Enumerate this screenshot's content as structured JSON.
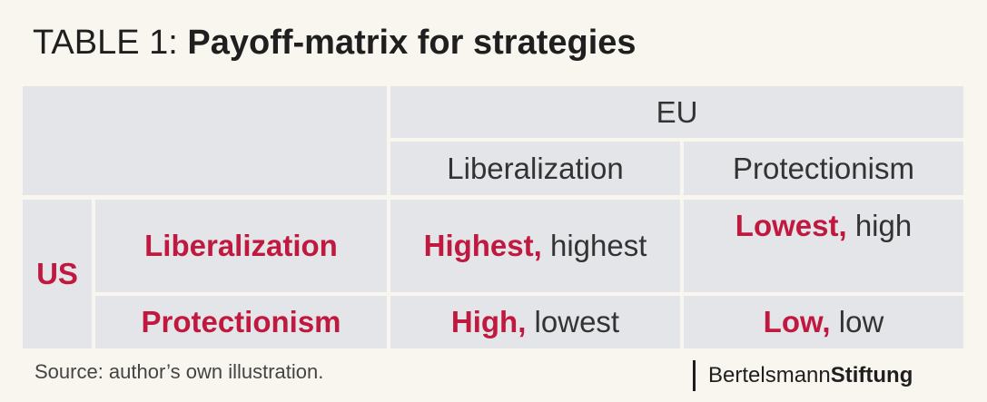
{
  "title": {
    "prefix": "TABLE 1:",
    "main": "Payoff-matrix for strategies"
  },
  "matrix": {
    "col_player": "EU",
    "col_strategies": [
      "Liberalization",
      "Protectionism"
    ],
    "row_player": "US",
    "rows": [
      {
        "strategy": "Liberalization",
        "cells": [
          {
            "first": "Highest,",
            "second": "highest"
          },
          {
            "first": "Lowest,",
            "second": "high"
          }
        ]
      },
      {
        "strategy": "Protectionism",
        "cells": [
          {
            "first": "High,",
            "second": "lowest"
          },
          {
            "first": "Low,",
            "second": "low"
          }
        ]
      }
    ]
  },
  "source": "Source: author’s own illustration.",
  "logo": {
    "part1": "Bertelsmann",
    "part2": "Stiftung"
  },
  "colors": {
    "accent": "#c0193f",
    "cell_bg": "#e4e5e8",
    "background": "#f8f6ef"
  }
}
